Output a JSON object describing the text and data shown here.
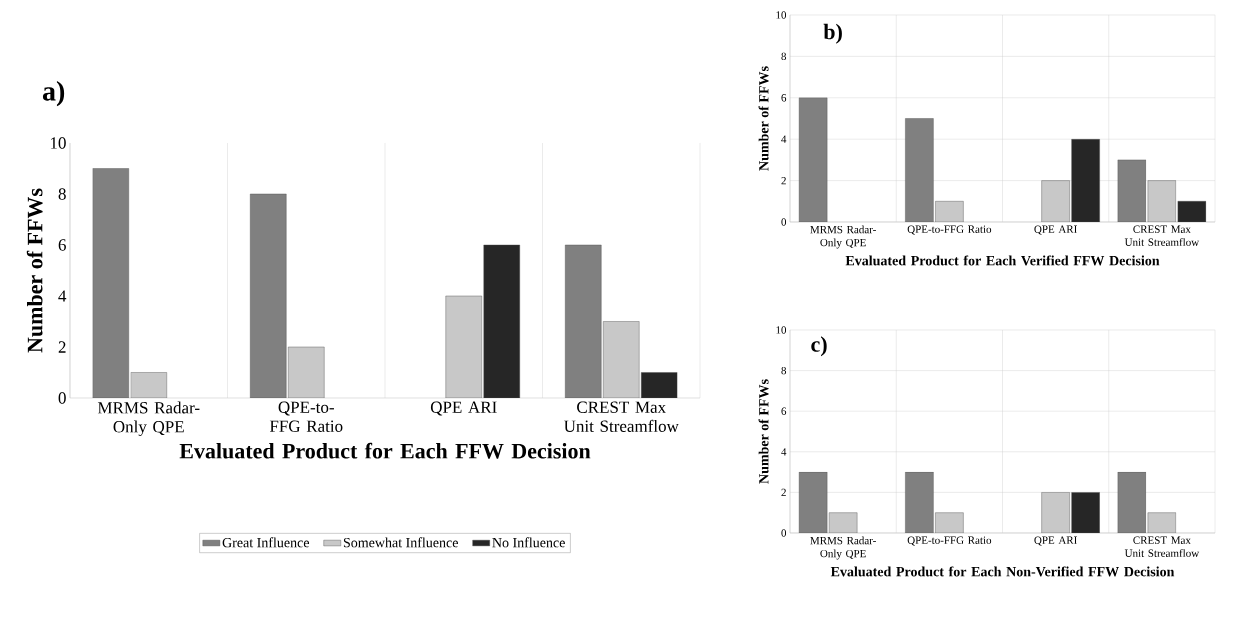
{
  "chart_data": [
    {
      "type": "bar",
      "title": "a)",
      "categories": [
        "MRMS Radar-Only QPE",
        "QPE-to-FFG Ratio",
        "QPE ARI",
        "CREST Max Unit Streamflow"
      ],
      "xlabel": "Evaluated Product for Each FFW Decision",
      "ylabel": "Number of FFWs",
      "ylim": [
        0,
        10
      ],
      "yticks": [
        0,
        2,
        4,
        6,
        8,
        10
      ],
      "grid": "x",
      "legend": "bottom",
      "series": [
        {
          "name": "Great Influence",
          "color": "#808080",
          "values": [
            9,
            8,
            null,
            6
          ]
        },
        {
          "name": "Somewhat Influence",
          "color": "#c8c8c8",
          "values": [
            1,
            2,
            4,
            3
          ]
        },
        {
          "name": "No Influence",
          "color": "#262626",
          "values": [
            null,
            null,
            6,
            1
          ]
        }
      ]
    },
    {
      "type": "bar",
      "title": "b)",
      "categories": [
        "MRMS Radar-Only QPE",
        "QPE-to-FFG Ratio",
        "QPE ARI",
        "CREST Max Unit Streamflow"
      ],
      "xlabel": "Evaluated Product for Each Verified FFW Decision",
      "ylabel": "Number of FFWs",
      "ylim": [
        0,
        10
      ],
      "yticks": [
        0,
        2,
        4,
        6,
        8,
        10
      ],
      "grid": true,
      "series": [
        {
          "color": "#808080",
          "values": [
            6,
            5,
            null,
            3
          ]
        },
        {
          "color": "#c8c8c8",
          "values": [
            null,
            1,
            2,
            2
          ]
        },
        {
          "color": "#262626",
          "values": [
            null,
            null,
            4,
            1
          ]
        }
      ]
    },
    {
      "type": "bar",
      "title": "c)",
      "categories": [
        "MRMS Radar-Only QPE",
        "QPE-to-FFG Ratio",
        "QPE ARI",
        "CREST Max Unit Streamflow"
      ],
      "xlabel": "Evaluated Product for Each Non-Verified FFW Decision",
      "ylabel": "Number of FFWs",
      "ylim": [
        0,
        10
      ],
      "yticks": [
        0,
        2,
        4,
        6,
        8,
        10
      ],
      "grid": true,
      "series": [
        {
          "color": "#808080",
          "values": [
            3,
            3,
            null,
            3
          ]
        },
        {
          "color": "#c8c8c8",
          "values": [
            1,
            1,
            2,
            1
          ]
        },
        {
          "color": "#262626",
          "values": [
            null,
            null,
            2,
            null
          ]
        }
      ]
    }
  ]
}
